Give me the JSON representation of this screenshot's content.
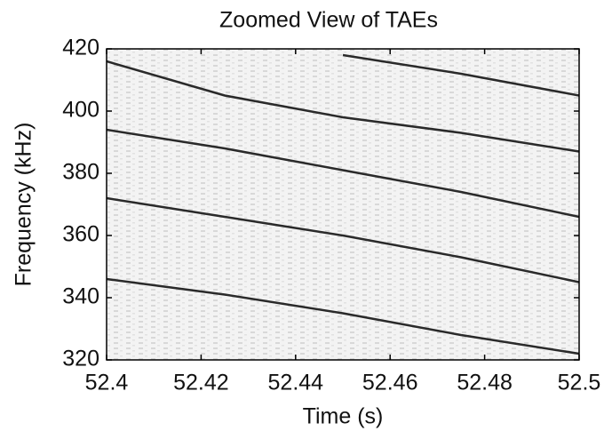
{
  "chart_data": {
    "type": "line",
    "title": "Zoomed View of TAEs",
    "x_label": "Time (s)",
    "y_label": "Frequency (kHz)",
    "x": [
      52.4,
      52.425,
      52.45,
      52.475,
      52.5
    ],
    "series": [
      {
        "color": "#2a2a2a",
        "values": [
          null,
          null,
          418,
          412,
          405
        ]
      },
      {
        "color": "#2a2a2a",
        "values": [
          416,
          405,
          398,
          393,
          387
        ]
      },
      {
        "color": "#2a2a2a",
        "values": [
          394,
          388,
          381,
          374,
          366
        ]
      },
      {
        "color": "#2a2a2a",
        "values": [
          372,
          366,
          360,
          353,
          345
        ]
      },
      {
        "color": "#2a2a2a",
        "values": [
          346,
          341,
          335,
          328,
          322
        ]
      }
    ],
    "xlim": [
      52.4,
      52.5
    ],
    "xticks": [
      52.4,
      52.42,
      52.44,
      52.46,
      52.48,
      52.5
    ],
    "ylim": [
      320,
      420
    ],
    "yticks": [
      320,
      340,
      360,
      380,
      400,
      420
    ]
  }
}
